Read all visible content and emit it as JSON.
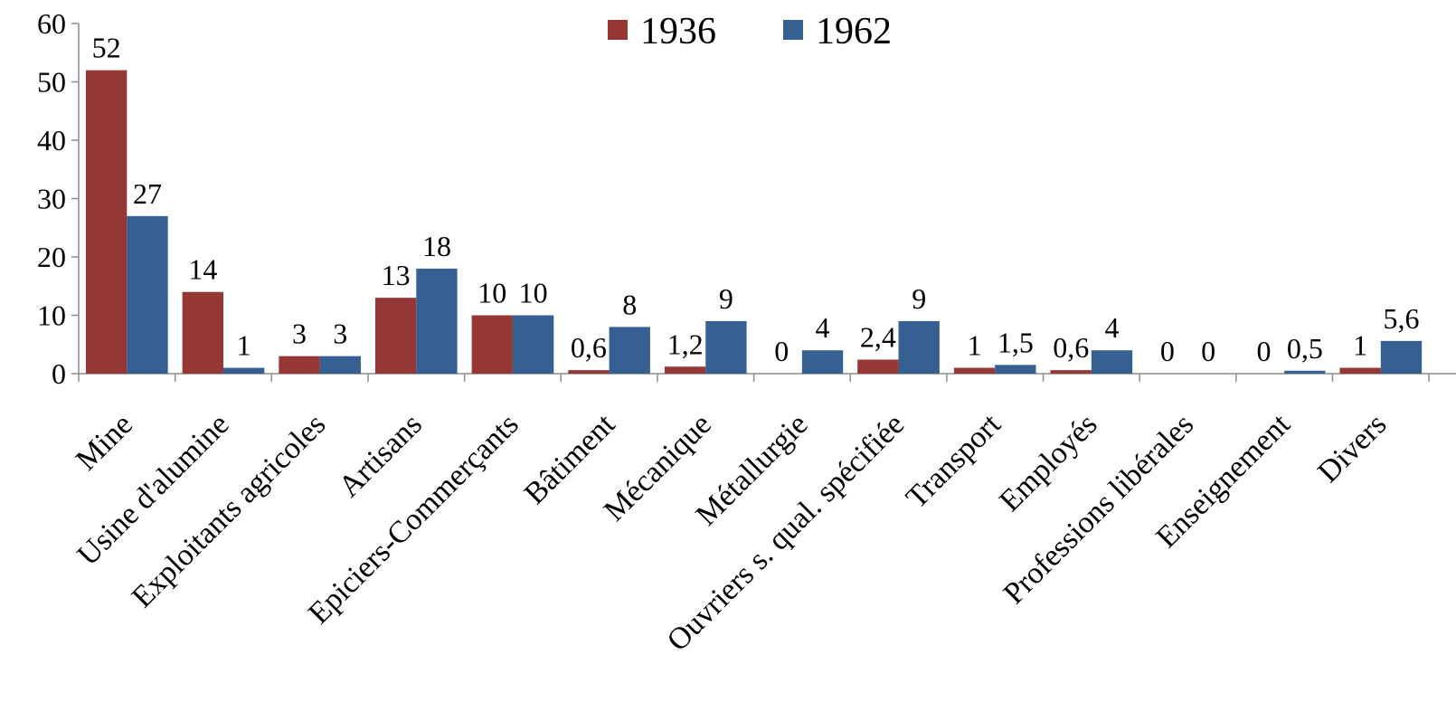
{
  "chart_data": {
    "type": "bar",
    "title": "",
    "xlabel": "",
    "ylabel": "",
    "ylim": [
      0,
      60
    ],
    "yticks": [
      "0",
      "10",
      "20",
      "30",
      "40",
      "50",
      "60"
    ],
    "grid": false,
    "legend_position": "top",
    "categories": [
      "Mine",
      "Usine d'alumine",
      "Exploitants agricoles",
      "Artisans",
      "Epiciers-Commerçants",
      "Bâtiment",
      "Mécanique",
      "Métallurgie",
      "Ouvriers s. qual. spécifiée",
      "Transport",
      "Employés",
      "Professions libérales",
      "Enseignement",
      "Divers"
    ],
    "series": [
      {
        "name": "1936",
        "color": "#953735",
        "values": [
          52,
          14,
          3,
          13,
          10,
          0.6,
          1.2,
          0,
          2.4,
          1,
          0.6,
          0,
          0,
          1
        ],
        "labels": [
          "52",
          "14",
          "3",
          "13",
          "10",
          "0,6",
          "1,2",
          "0",
          "2,4",
          "1",
          "0,6",
          "0",
          "0",
          "1"
        ]
      },
      {
        "name": "1962",
        "color": "#366092",
        "values": [
          27,
          1,
          3,
          18,
          10,
          8,
          9,
          4,
          9,
          1.5,
          4,
          0,
          0.5,
          5.6
        ],
        "labels": [
          "27",
          "1",
          "3",
          "18",
          "10",
          "8",
          "9",
          "4",
          "9",
          "1,5",
          "4",
          "0",
          "0,5",
          "5,6"
        ]
      }
    ]
  }
}
